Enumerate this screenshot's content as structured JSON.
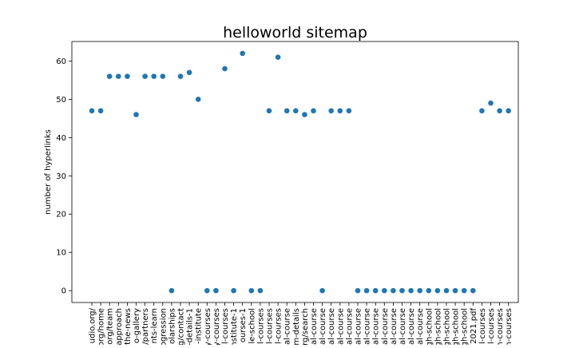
{
  "chart_data": {
    "type": "scatter",
    "title": "helloworld sitemap",
    "xlabel": "",
    "ylabel": "number of hyperlinks",
    "ylim": [
      -3.1,
      65.1
    ],
    "yticks": [
      0,
      10,
      20,
      30,
      40,
      50,
      60
    ],
    "grid": false,
    "marker_color": "#1f77b4",
    "categories": [
      "udio.org/",
      "org/home",
      "org/team",
      "approach",
      "the-news",
      "o-gallery",
      "/partners",
      "nts-learn",
      "ogression",
      "olarships",
      "g/contact",
      "-details-1",
      "-institute",
      "y-courses",
      "y-courses",
      "l-courses",
      "nstitute-1",
      "ourses-1",
      "le-school",
      "l-courses",
      "l-courses",
      "l-courses",
      "al-course",
      "m-details",
      "rg/search",
      "al-course",
      "al-course",
      "al-course",
      "al-course",
      "al-course",
      "al-course",
      "al-course",
      "al-course",
      "al-course",
      "al-course",
      "al-course",
      "al-course",
      "al-course",
      "gh-school",
      "gh-school",
      "gh-school",
      "gh-school",
      "gh-school",
      "2021.pdf",
      "l-courses",
      "l-courses",
      "n-courses",
      "n-courses"
    ],
    "values": [
      47,
      47,
      56,
      56,
      56,
      46,
      56,
      56,
      56,
      0,
      56,
      57,
      50,
      0,
      0,
      58,
      0,
      62,
      0,
      0,
      47,
      61,
      47,
      47,
      46,
      47,
      0,
      47,
      47,
      47,
      0,
      0,
      0,
      0,
      0,
      0,
      0,
      0,
      0,
      0,
      0,
      0,
      0,
      0,
      47,
      49,
      47,
      47
    ]
  }
}
